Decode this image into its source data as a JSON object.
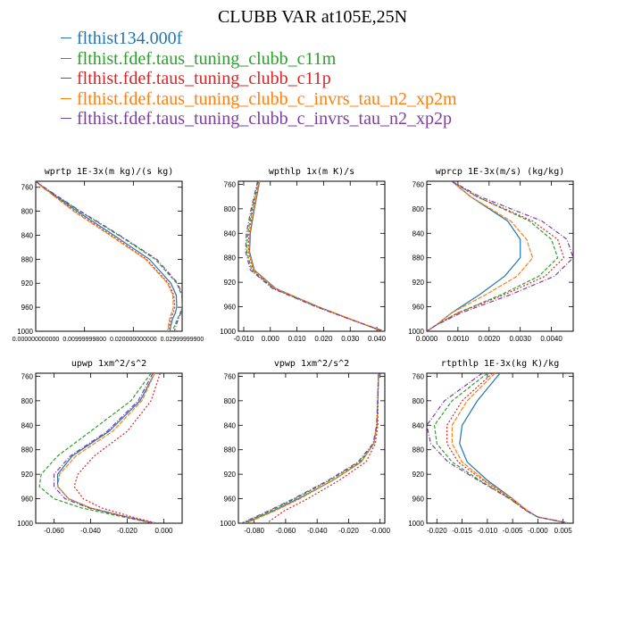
{
  "title": "CLUBB VAR at105E,25N",
  "legend": [
    {
      "label": "flthist134.000f",
      "color": "#1f77b4"
    },
    {
      "label": "flthist.fdef.taus_tuning_clubb_c11m",
      "color": "#2ca02c"
    },
    {
      "label": "flthist.fdef.taus_tuning_clubb_c11p",
      "color": "#d62728"
    },
    {
      "label": "flthist.fdef.taus_tuning_clubb_c_invrs_tau_n2_xp2m",
      "color": "#ff7f0e"
    },
    {
      "label": "flthist.fdef.taus_tuning_clubb_c_invrs_tau_n2_xp2p",
      "color": "#7b3fa0"
    }
  ],
  "chart_data": [
    {
      "type": "line",
      "title": "wprtp  1E-3x(m kg)/(s kg)",
      "y_ticks": [
        760,
        800,
        840,
        880,
        920,
        960,
        1000
      ],
      "x_ticks": [
        0,
        0.01,
        0.02,
        0.03
      ],
      "x_tick_labels": [
        "0.000000000000",
        "0.00999999800",
        "0.020000000000",
        "0.02999999900"
      ],
      "xlim": [
        0,
        0.03
      ],
      "ylim": [
        750,
        1000
      ],
      "y": [
        750,
        760,
        800,
        840,
        880,
        920,
        940,
        960,
        970,
        980,
        990,
        1000
      ],
      "series": [
        {
          "name": "flthist134.000f",
          "values": [
            0.0,
            0.0015,
            0.0085,
            0.016,
            0.0233,
            0.0277,
            0.0288,
            0.0289,
            0.0286,
            0.028,
            0.0277,
            0.0275
          ]
        },
        {
          "name": "flthist.fdef.taus_tuning_clubb_c11m",
          "values": [
            0.0,
            0.0016,
            0.009,
            0.017,
            0.0245,
            0.0289,
            0.0299,
            0.03,
            0.0296,
            0.029,
            0.0285,
            0.028
          ]
        },
        {
          "name": "flthist.fdef.taus_tuning_clubb_c11p",
          "values": [
            0.0,
            0.0014,
            0.008,
            0.0155,
            0.0227,
            0.0272,
            0.0283,
            0.0285,
            0.0281,
            0.0277,
            0.0274,
            0.0272
          ]
        },
        {
          "name": "flthist.fdef.taus_tuning_clubb_c_invrs_tau_n2_xp2m",
          "values": [
            0.0,
            0.0014,
            0.0078,
            0.0152,
            0.0225,
            0.027,
            0.0281,
            0.0282,
            0.0278,
            0.0274,
            0.0272,
            0.027
          ]
        },
        {
          "name": "flthist.fdef.taus_tuning_clubb_c_invrs_tau_n2_xp2p",
          "values": [
            0.0,
            0.0017,
            0.0092,
            0.0172,
            0.0248,
            0.0291,
            0.03,
            0.03,
            0.0297,
            0.0292,
            0.0288,
            0.0284
          ]
        }
      ]
    },
    {
      "type": "line",
      "title": "wpthlp  1x(m K)/s",
      "y_ticks": [
        760,
        800,
        840,
        880,
        920,
        960,
        1000
      ],
      "x_ticks": [
        -0.01,
        0.0,
        0.01,
        0.02,
        0.03,
        0.04
      ],
      "x_tick_labels": [
        "-0.010",
        "0.000",
        "0.010",
        "0.020",
        "0.030",
        "0.040"
      ],
      "xlim": [
        -0.012,
        0.043
      ],
      "ylim": [
        755,
        1000
      ],
      "y": [
        755,
        800,
        840,
        870,
        900,
        930,
        960,
        980,
        1000
      ],
      "series": [
        {
          "name": "flthist134.000f",
          "values": [
            -0.004,
            -0.006,
            -0.0075,
            -0.0078,
            -0.006,
            0.002,
            0.018,
            0.03,
            0.042
          ]
        },
        {
          "name": "flthist.fdef.taus_tuning_clubb_c11m",
          "values": [
            -0.0045,
            -0.0068,
            -0.0085,
            -0.0088,
            -0.007,
            0.0012,
            0.0175,
            0.0298,
            0.0425
          ]
        },
        {
          "name": "flthist.fdef.taus_tuning_clubb_c11p",
          "values": [
            -0.0042,
            -0.0064,
            -0.008,
            -0.0082,
            -0.0065,
            0.0015,
            0.0178,
            0.03,
            0.0422
          ]
        },
        {
          "name": "flthist.fdef.taus_tuning_clubb_c_invrs_tau_n2_xp2m",
          "values": [
            -0.0041,
            -0.0062,
            -0.0077,
            -0.008,
            -0.0062,
            0.0018,
            0.0178,
            0.03,
            0.0421
          ]
        },
        {
          "name": "flthist.fdef.taus_tuning_clubb_c_invrs_tau_n2_xp2p",
          "values": [
            -0.0048,
            -0.0072,
            -0.009,
            -0.0093,
            -0.0075,
            0.0008,
            0.0172,
            0.0296,
            0.0428
          ]
        }
      ]
    },
    {
      "type": "line",
      "title": "wprcp  1E-3x(m/s) (kg/kg)",
      "y_ticks": [
        760,
        800,
        840,
        880,
        920,
        960,
        1000
      ],
      "x_ticks": [
        0.0,
        0.001,
        0.002,
        0.003,
        0.004
      ],
      "x_tick_labels": [
        "0.0000",
        "0.0010",
        "0.0020",
        "0.0030",
        "0.0040"
      ],
      "xlim": [
        0,
        0.0047
      ],
      "ylim": [
        755,
        1000
      ],
      "y": [
        755,
        780,
        820,
        850,
        880,
        910,
        940,
        970,
        990,
        1000
      ],
      "series": [
        {
          "name": "flthist134.000f",
          "values": [
            0.0008,
            0.0014,
            0.0026,
            0.003,
            0.003,
            0.0025,
            0.0017,
            0.0008,
            0.0003,
            0.0
          ]
        },
        {
          "name": "flthist.fdef.taus_tuning_clubb_c11m",
          "values": [
            0.0008,
            0.0016,
            0.0033,
            0.004,
            0.0042,
            0.0036,
            0.0024,
            0.001,
            0.0003,
            0.0
          ]
        },
        {
          "name": "flthist.fdef.taus_tuning_clubb_c11p",
          "values": [
            0.0008,
            0.0016,
            0.0034,
            0.0042,
            0.0044,
            0.0038,
            0.0025,
            0.001,
            0.0003,
            0.0
          ]
        },
        {
          "name": "flthist.fdef.taus_tuning_clubb_c_invrs_tau_n2_xp2m",
          "values": [
            0.0008,
            0.0014,
            0.0027,
            0.0032,
            0.0034,
            0.0029,
            0.0019,
            0.0008,
            0.0003,
            0.0
          ]
        },
        {
          "name": "flthist.fdef.taus_tuning_clubb_c_invrs_tau_n2_xp2p",
          "values": [
            0.0008,
            0.0017,
            0.0037,
            0.0045,
            0.0047,
            0.0041,
            0.0027,
            0.0011,
            0.0003,
            0.0
          ]
        }
      ]
    },
    {
      "type": "line",
      "title": "upwp  1xm^2/s^2",
      "y_ticks": [
        760,
        800,
        840,
        880,
        920,
        960,
        1000
      ],
      "x_ticks": [
        -0.06,
        -0.04,
        -0.02,
        0.0
      ],
      "x_tick_labels": [
        "-0.060",
        "-0.040",
        "-0.020",
        "0.000"
      ],
      "xlim": [
        -0.07,
        0.01
      ],
      "ylim": [
        755,
        1000
      ],
      "y": [
        755,
        800,
        850,
        890,
        920,
        940,
        960,
        975,
        990,
        1000
      ],
      "series": [
        {
          "name": "flthist134.000f",
          "values": [
            -0.005,
            -0.013,
            -0.03,
            -0.05,
            -0.058,
            -0.058,
            -0.052,
            -0.04,
            -0.02,
            -0.005
          ]
        },
        {
          "name": "flthist.fdef.taus_tuning_clubb_c11m",
          "values": [
            -0.007,
            -0.018,
            -0.04,
            -0.058,
            -0.067,
            -0.068,
            -0.06,
            -0.045,
            -0.022,
            -0.006
          ]
        },
        {
          "name": "flthist.fdef.taus_tuning_clubb_c11p",
          "values": [
            -0.002,
            -0.007,
            -0.02,
            -0.038,
            -0.047,
            -0.049,
            -0.044,
            -0.034,
            -0.017,
            -0.004
          ]
        },
        {
          "name": "flthist.fdef.taus_tuning_clubb_c_invrs_tau_n2_xp2m",
          "values": [
            -0.005,
            -0.012,
            -0.028,
            -0.048,
            -0.057,
            -0.058,
            -0.052,
            -0.04,
            -0.02,
            -0.005
          ]
        },
        {
          "name": "flthist.fdef.taus_tuning_clubb_c_invrs_tau_n2_xp2p",
          "values": [
            -0.006,
            -0.014,
            -0.031,
            -0.051,
            -0.06,
            -0.06,
            -0.054,
            -0.041,
            -0.02,
            -0.005
          ]
        }
      ]
    },
    {
      "type": "line",
      "title": "vpwp  1xm^2/s^2",
      "y_ticks": [
        760,
        800,
        840,
        880,
        920,
        960,
        1000
      ],
      "x_ticks": [
        -0.08,
        -0.06,
        -0.04,
        -0.02,
        0.0
      ],
      "x_tick_labels": [
        "-0.080",
        "-0.060",
        "-0.040",
        "-0.020",
        "-0.000"
      ],
      "xlim": [
        -0.09,
        0.003
      ],
      "ylim": [
        755,
        1000
      ],
      "y": [
        755,
        800,
        840,
        870,
        900,
        930,
        960,
        980,
        1000
      ],
      "series": [
        {
          "name": "flthist134.000f",
          "values": [
            -0.001,
            -0.0015,
            -0.002,
            -0.004,
            -0.012,
            -0.03,
            -0.052,
            -0.068,
            -0.086
          ]
        },
        {
          "name": "flthist.fdef.taus_tuning_clubb_c11m",
          "values": [
            -0.001,
            -0.0015,
            -0.002,
            -0.004,
            -0.013,
            -0.032,
            -0.054,
            -0.07,
            -0.087
          ]
        },
        {
          "name": "flthist.fdef.taus_tuning_clubb_c11p",
          "values": [
            -0.001,
            -0.0013,
            -0.0015,
            -0.003,
            -0.009,
            -0.026,
            -0.046,
            -0.061,
            -0.072
          ]
        },
        {
          "name": "flthist.fdef.taus_tuning_clubb_c_invrs_tau_n2_xp2m",
          "values": [
            -0.001,
            -0.0015,
            -0.002,
            -0.004,
            -0.012,
            -0.03,
            -0.051,
            -0.067,
            -0.085
          ]
        },
        {
          "name": "flthist.fdef.taus_tuning_clubb_c_invrs_tau_n2_xp2p",
          "values": [
            -0.001,
            -0.0016,
            -0.0022,
            -0.0045,
            -0.014,
            -0.033,
            -0.055,
            -0.071,
            -0.088
          ]
        }
      ]
    },
    {
      "type": "line",
      "title": "rtpthlp  1E-3x(kg K)/kg",
      "y_ticks": [
        760,
        800,
        840,
        880,
        920,
        960,
        1000
      ],
      "x_ticks": [
        -0.02,
        -0.015,
        -0.01,
        -0.005,
        0.0,
        0.005
      ],
      "x_tick_labels": [
        "-0.020",
        "-0.015",
        "-0.010",
        "-0.005",
        "-0.000",
        "0.005"
      ],
      "xlim": [
        -0.022,
        0.007
      ],
      "ylim": [
        755,
        1000
      ],
      "y": [
        755,
        800,
        840,
        870,
        900,
        930,
        960,
        980,
        990,
        1000
      ],
      "series": [
        {
          "name": "flthist134.000f",
          "values": [
            -0.0075,
            -0.012,
            -0.015,
            -0.0155,
            -0.014,
            -0.01,
            -0.005,
            -0.002,
            0.0,
            0.006
          ]
        },
        {
          "name": "flthist.fdef.taus_tuning_clubb_c11m",
          "values": [
            -0.01,
            -0.017,
            -0.0205,
            -0.02,
            -0.017,
            -0.0115,
            -0.0055,
            -0.0022,
            0.0,
            0.0062
          ]
        },
        {
          "name": "flthist.fdef.taus_tuning_clubb_c11p",
          "values": [
            -0.009,
            -0.015,
            -0.018,
            -0.018,
            -0.0158,
            -0.0108,
            -0.0052,
            -0.0021,
            0.0,
            0.0061
          ]
        },
        {
          "name": "flthist.fdef.taus_tuning_clubb_c_invrs_tau_n2_xp2m",
          "values": [
            -0.0085,
            -0.014,
            -0.017,
            -0.017,
            -0.015,
            -0.0105,
            -0.0051,
            -0.002,
            0.0,
            0.0061
          ]
        },
        {
          "name": "flthist.fdef.taus_tuning_clubb_c_invrs_tau_n2_xp2p",
          "values": [
            -0.011,
            -0.0185,
            -0.022,
            -0.0212,
            -0.0178,
            -0.0118,
            -0.0056,
            -0.0022,
            0.0,
            0.0063
          ]
        }
      ]
    }
  ]
}
